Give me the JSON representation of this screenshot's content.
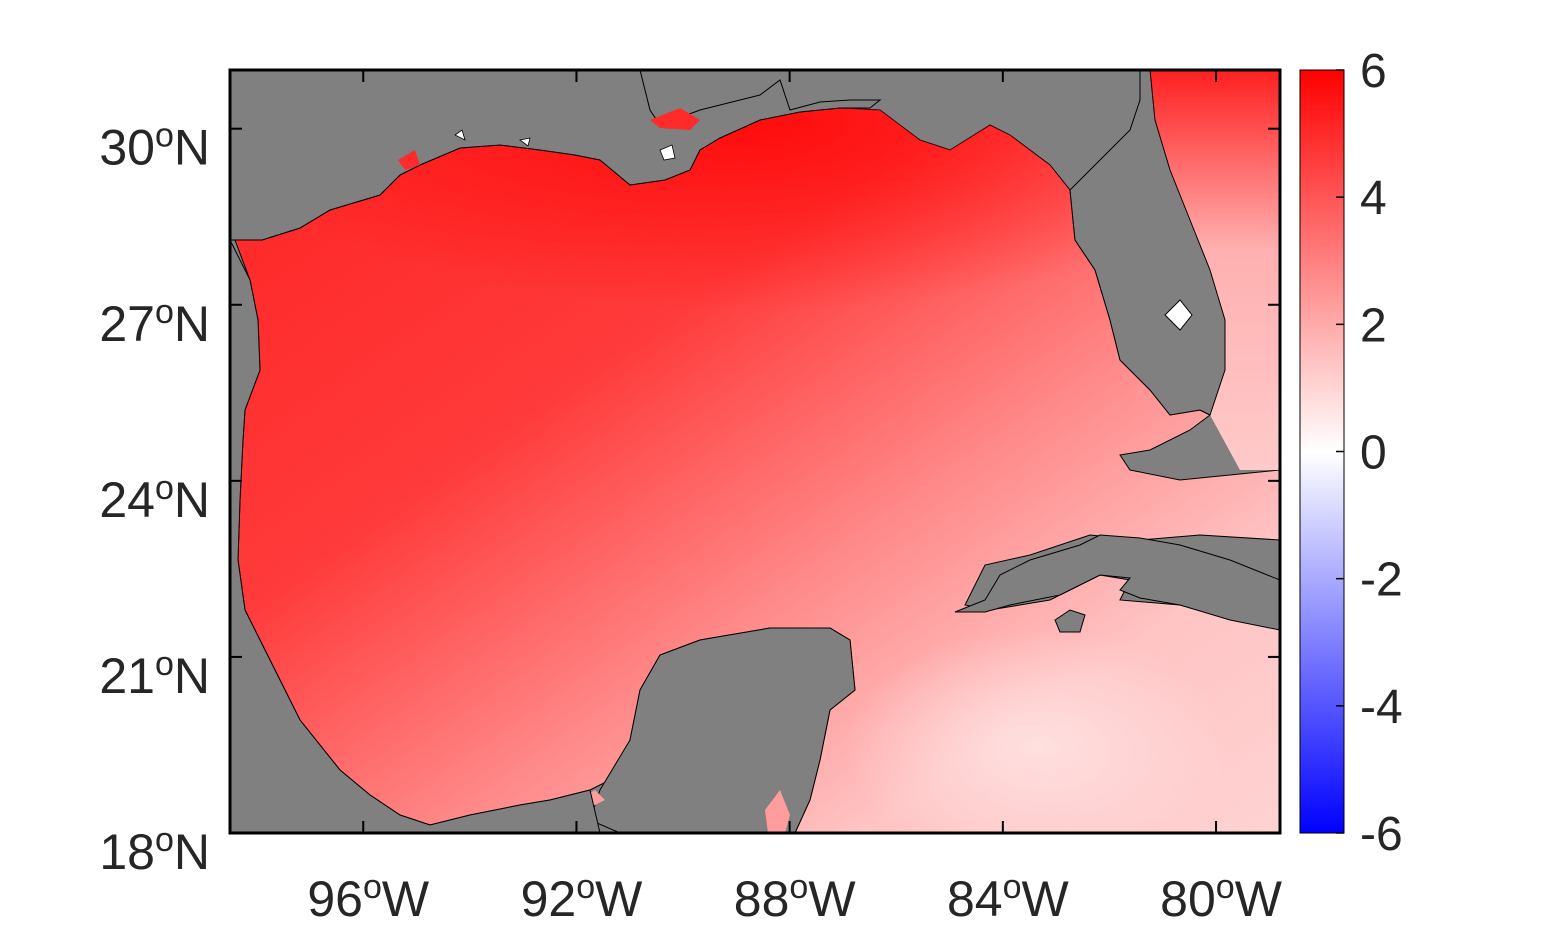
{
  "map": {
    "extent": {
      "lon_min": -98.5,
      "lon_max": -78.8,
      "lat_min": 18.0,
      "lat_max": 31.0
    },
    "colors": {
      "land": "#808080",
      "coastline": "#000000",
      "frame": "#000000",
      "colormap": [
        "#0000ff",
        "#ffffff",
        "#ff0000"
      ]
    },
    "x_ticks": [
      {
        "value": -96,
        "num": "96",
        "sup": "o",
        "suffix": "W"
      },
      {
        "value": -92,
        "num": "92",
        "sup": "o",
        "suffix": "W"
      },
      {
        "value": -88,
        "num": "88",
        "sup": "o",
        "suffix": "W"
      },
      {
        "value": -84,
        "num": "84",
        "sup": "o",
        "suffix": "W"
      },
      {
        "value": -80,
        "num": "80",
        "sup": "o",
        "suffix": "W"
      }
    ],
    "y_ticks": [
      {
        "value": 18,
        "num": "18",
        "sup": "o",
        "suffix": "N"
      },
      {
        "value": 21,
        "num": "21",
        "sup": "o",
        "suffix": "N"
      },
      {
        "value": 24,
        "num": "24",
        "sup": "o",
        "suffix": "N"
      },
      {
        "value": 27,
        "num": "27",
        "sup": "o",
        "suffix": "N"
      },
      {
        "value": 30,
        "num": "30",
        "sup": "o",
        "suffix": "N"
      }
    ]
  },
  "colorbar": {
    "range": [
      -6,
      6
    ],
    "ticks": [
      "6",
      "4",
      "2",
      "0",
      "-2",
      "-4",
      "-6"
    ]
  }
}
